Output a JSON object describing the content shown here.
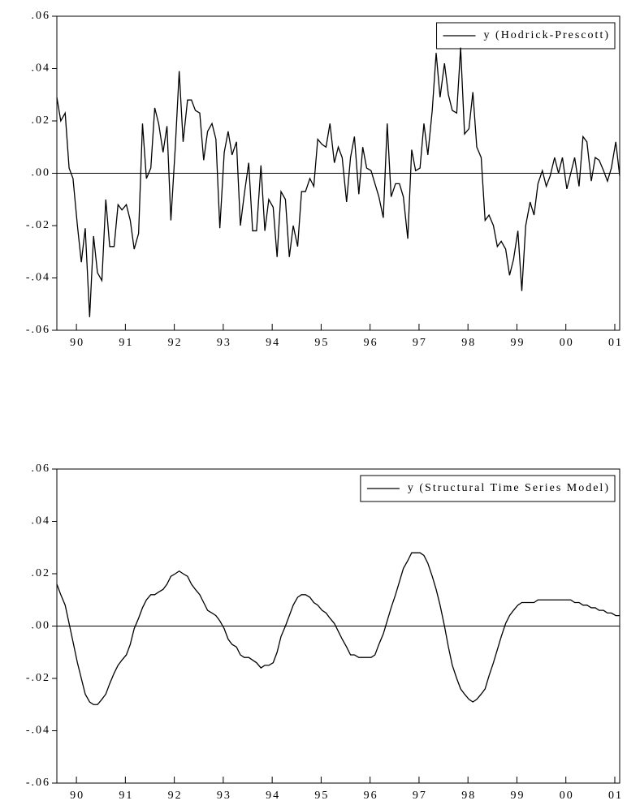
{
  "chart_data": [
    {
      "type": "line",
      "x": [
        1990.1,
        1990.18,
        1990.27,
        1990.35,
        1990.43,
        1990.52,
        1990.6,
        1990.68,
        1990.77,
        1990.85,
        1990.93,
        1991.02,
        1991.1,
        1991.18,
        1991.27,
        1991.35,
        1991.43,
        1991.52,
        1991.6,
        1991.68,
        1991.77,
        1991.85,
        1991.93,
        1992.02,
        1992.1,
        1992.18,
        1992.27,
        1992.35,
        1992.43,
        1992.52,
        1992.6,
        1992.68,
        1992.77,
        1992.85,
        1992.93,
        1993.02,
        1993.1,
        1993.18,
        1993.27,
        1993.35,
        1993.43,
        1993.52,
        1993.6,
        1993.68,
        1993.77,
        1993.85,
        1993.93,
        1994.02,
        1994.1,
        1994.18,
        1994.27,
        1994.35,
        1994.43,
        1994.52,
        1994.6,
        1994.68,
        1994.77,
        1994.85,
        1994.93,
        1995.02,
        1995.1,
        1995.18,
        1995.27,
        1995.35,
        1995.43,
        1995.52,
        1995.6,
        1995.68,
        1995.77,
        1995.85,
        1995.93,
        1996.02,
        1996.1,
        1996.18,
        1996.27,
        1996.35,
        1996.43,
        1996.52,
        1996.6,
        1996.68,
        1996.77,
        1996.85,
        1996.93,
        1997.02,
        1997.1,
        1997.18,
        1997.27,
        1997.35,
        1997.43,
        1997.52,
        1997.6,
        1997.68,
        1997.77,
        1997.85,
        1997.93,
        1998.02,
        1998.1,
        1998.18,
        1998.27,
        1998.35,
        1998.43,
        1998.52,
        1998.6,
        1998.68,
        1998.77,
        1998.85,
        1998.93,
        1999.02,
        1999.1,
        1999.18,
        1999.27,
        1999.35,
        1999.43,
        1999.52,
        1999.6,
        1999.68,
        1999.77,
        1999.85,
        1999.93,
        2000.02,
        2000.1,
        2000.18,
        2000.27,
        2000.35,
        2000.43,
        2000.52,
        2000.6,
        2000.68,
        2000.77,
        2000.85,
        2000.93,
        2001.02,
        2001.1,
        2001.18,
        2001.27,
        2001.35,
        2001.43,
        2001.52,
        2001.6
      ],
      "series": [
        {
          "name": "y (Hodrick-Prescott)",
          "color": "#000000",
          "values": [
            0.029,
            0.02,
            0.023,
            0.002,
            -0.002,
            -0.02,
            -0.034,
            -0.021,
            -0.055,
            -0.024,
            -0.038,
            -0.041,
            -0.01,
            -0.028,
            -0.028,
            -0.012,
            -0.014,
            -0.012,
            -0.018,
            -0.029,
            -0.023,
            0.019,
            -0.002,
            0.002,
            0.025,
            0.019,
            0.008,
            0.018,
            -0.018,
            0.01,
            0.039,
            0.012,
            0.028,
            0.028,
            0.024,
            0.023,
            0.005,
            0.016,
            0.019,
            0.013,
            -0.021,
            0.008,
            0.016,
            0.007,
            0.012,
            -0.02,
            -0.008,
            0.004,
            -0.022,
            -0.022,
            0.003,
            -0.022,
            -0.01,
            -0.013,
            -0.032,
            -0.007,
            -0.01,
            -0.032,
            -0.02,
            -0.028,
            -0.007,
            -0.007,
            -0.002,
            -0.005,
            0.013,
            0.011,
            0.01,
            0.019,
            0.004,
            0.01,
            0.006,
            -0.011,
            0.006,
            0.014,
            -0.008,
            0.01,
            0.002,
            0.001,
            -0.004,
            -0.009,
            -0.017,
            0.019,
            -0.009,
            -0.004,
            -0.004,
            -0.009,
            -0.025,
            0.009,
            0.001,
            0.002,
            0.019,
            0.007,
            0.024,
            0.046,
            0.029,
            0.042,
            0.03,
            0.024,
            0.023,
            0.048,
            0.015,
            0.017,
            0.031,
            0.01,
            0.006,
            -0.018,
            -0.016,
            -0.02,
            -0.028,
            -0.026,
            -0.029,
            -0.039,
            -0.033,
            -0.022,
            -0.045,
            -0.02,
            -0.011,
            -0.016,
            -0.004,
            0.001,
            -0.005,
            -0.001,
            0.006,
            0.0,
            0.006,
            -0.006,
            0.0,
            0.006,
            -0.005,
            0.014,
            0.012,
            -0.003,
            0.006,
            0.005,
            0.001,
            -0.003,
            0.002,
            0.012,
            -0.001
          ]
        }
      ],
      "xlim": [
        1990.1,
        2001.6
      ],
      "xticks": [
        {
          "value": 1990.5,
          "label": "90"
        },
        {
          "value": 1991.5,
          "label": "91"
        },
        {
          "value": 1992.5,
          "label": "92"
        },
        {
          "value": 1993.5,
          "label": "93"
        },
        {
          "value": 1994.5,
          "label": "94"
        },
        {
          "value": 1995.5,
          "label": "95"
        },
        {
          "value": 1996.5,
          "label": "96"
        },
        {
          "value": 1997.5,
          "label": "97"
        },
        {
          "value": 1998.5,
          "label": "98"
        },
        {
          "value": 1999.5,
          "label": "99"
        },
        {
          "value": 2000.5,
          "label": "00"
        },
        {
          "value": 2001.5,
          "label": "01"
        }
      ],
      "ylim": [
        -0.06,
        0.06
      ],
      "yticks": [
        {
          "value": -0.06,
          "label": "-.06"
        },
        {
          "value": -0.04,
          "label": "-.04"
        },
        {
          "value": -0.02,
          "label": "-.02"
        },
        {
          "value": 0,
          "label": ".00"
        },
        {
          "value": 0.02,
          "label": ".02"
        },
        {
          "value": 0.04,
          "label": ".04"
        },
        {
          "value": 0.06,
          "label": ".06"
        }
      ],
      "zero_line": true,
      "legend": "top-right"
    },
    {
      "type": "line",
      "x": [
        1990.1,
        1990.18,
        1990.27,
        1990.35,
        1990.43,
        1990.52,
        1990.6,
        1990.68,
        1990.77,
        1990.85,
        1990.93,
        1991.02,
        1991.1,
        1991.18,
        1991.27,
        1991.35,
        1991.43,
        1991.52,
        1991.6,
        1991.68,
        1991.77,
        1991.85,
        1991.93,
        1992.02,
        1992.1,
        1992.18,
        1992.27,
        1992.35,
        1992.43,
        1992.52,
        1992.6,
        1992.68,
        1992.77,
        1992.85,
        1992.93,
        1993.02,
        1993.1,
        1993.18,
        1993.27,
        1993.35,
        1993.43,
        1993.52,
        1993.6,
        1993.68,
        1993.77,
        1993.85,
        1993.93,
        1994.02,
        1994.1,
        1994.18,
        1994.27,
        1994.35,
        1994.43,
        1994.52,
        1994.6,
        1994.68,
        1994.77,
        1994.85,
        1994.93,
        1995.02,
        1995.1,
        1995.18,
        1995.27,
        1995.35,
        1995.43,
        1995.52,
        1995.6,
        1995.68,
        1995.77,
        1995.85,
        1995.93,
        1996.02,
        1996.1,
        1996.18,
        1996.27,
        1996.35,
        1996.43,
        1996.52,
        1996.6,
        1996.68,
        1996.77,
        1996.85,
        1996.93,
        1997.02,
        1997.1,
        1997.18,
        1997.27,
        1997.35,
        1997.43,
        1997.52,
        1997.6,
        1997.68,
        1997.77,
        1997.85,
        1997.93,
        1998.02,
        1998.1,
        1998.18,
        1998.27,
        1998.35,
        1998.43,
        1998.52,
        1998.6,
        1998.68,
        1998.77,
        1998.85,
        1998.93,
        1999.02,
        1999.1,
        1999.18,
        1999.27,
        1999.35,
        1999.43,
        1999.52,
        1999.6,
        1999.68,
        1999.77,
        1999.85,
        1999.93,
        2000.02,
        2000.1,
        2000.18,
        2000.27,
        2000.35,
        2000.43,
        2000.52,
        2000.6,
        2000.68,
        2000.77,
        2000.85,
        2000.93,
        2001.02,
        2001.1,
        2001.18,
        2001.27,
        2001.35,
        2001.43,
        2001.52,
        2001.6
      ],
      "series": [
        {
          "name": "y (Structural Time Series Model)",
          "color": "#000000",
          "values": [
            0.016,
            0.012,
            0.008,
            0.001,
            -0.006,
            -0.014,
            -0.02,
            -0.026,
            -0.029,
            -0.03,
            -0.03,
            -0.028,
            -0.026,
            -0.022,
            -0.018,
            -0.015,
            -0.013,
            -0.011,
            -0.007,
            -0.001,
            0.003,
            0.007,
            0.01,
            0.012,
            0.012,
            0.013,
            0.014,
            0.016,
            0.019,
            0.02,
            0.021,
            0.02,
            0.019,
            0.016,
            0.014,
            0.012,
            0.009,
            0.006,
            0.005,
            0.004,
            0.002,
            -0.001,
            -0.005,
            -0.007,
            -0.008,
            -0.011,
            -0.012,
            -0.012,
            -0.013,
            -0.014,
            -0.016,
            -0.015,
            -0.015,
            -0.014,
            -0.01,
            -0.004,
            0.0,
            0.004,
            0.008,
            0.011,
            0.012,
            0.012,
            0.011,
            0.009,
            0.008,
            0.006,
            0.005,
            0.003,
            0.001,
            -0.002,
            -0.005,
            -0.008,
            -0.011,
            -0.011,
            -0.012,
            -0.012,
            -0.012,
            -0.012,
            -0.011,
            -0.007,
            -0.003,
            0.002,
            0.007,
            0.012,
            0.017,
            0.022,
            0.025,
            0.028,
            0.028,
            0.028,
            0.027,
            0.024,
            0.019,
            0.014,
            0.008,
            0.0,
            -0.008,
            -0.015,
            -0.02,
            -0.024,
            -0.026,
            -0.028,
            -0.029,
            -0.028,
            -0.026,
            -0.024,
            -0.019,
            -0.014,
            -0.009,
            -0.004,
            0.001,
            0.004,
            0.006,
            0.008,
            0.009,
            0.009,
            0.009,
            0.009,
            0.01,
            0.01,
            0.01,
            0.01,
            0.01,
            0.01,
            0.01,
            0.01,
            0.01,
            0.009,
            0.009,
            0.008,
            0.008,
            0.007,
            0.007,
            0.006,
            0.006,
            0.005,
            0.005,
            0.004,
            0.004
          ]
        }
      ],
      "xlim": [
        1990.1,
        2001.6
      ],
      "xticks": [
        {
          "value": 1990.5,
          "label": "90"
        },
        {
          "value": 1991.5,
          "label": "91"
        },
        {
          "value": 1992.5,
          "label": "92"
        },
        {
          "value": 1993.5,
          "label": "93"
        },
        {
          "value": 1994.5,
          "label": "94"
        },
        {
          "value": 1995.5,
          "label": "95"
        },
        {
          "value": 1996.5,
          "label": "96"
        },
        {
          "value": 1997.5,
          "label": "97"
        },
        {
          "value": 1998.5,
          "label": "98"
        },
        {
          "value": 1999.5,
          "label": "99"
        },
        {
          "value": 2000.5,
          "label": "00"
        },
        {
          "value": 2001.5,
          "label": "01"
        }
      ],
      "ylim": [
        -0.06,
        0.06
      ],
      "yticks": [
        {
          "value": -0.06,
          "label": "-.06"
        },
        {
          "value": -0.04,
          "label": "-.04"
        },
        {
          "value": -0.02,
          "label": "-.02"
        },
        {
          "value": 0,
          "label": ".00"
        },
        {
          "value": 0.02,
          "label": ".02"
        },
        {
          "value": 0.04,
          "label": ".04"
        },
        {
          "value": 0.06,
          "label": ".06"
        }
      ],
      "zero_line": true,
      "legend": "top-right"
    }
  ]
}
